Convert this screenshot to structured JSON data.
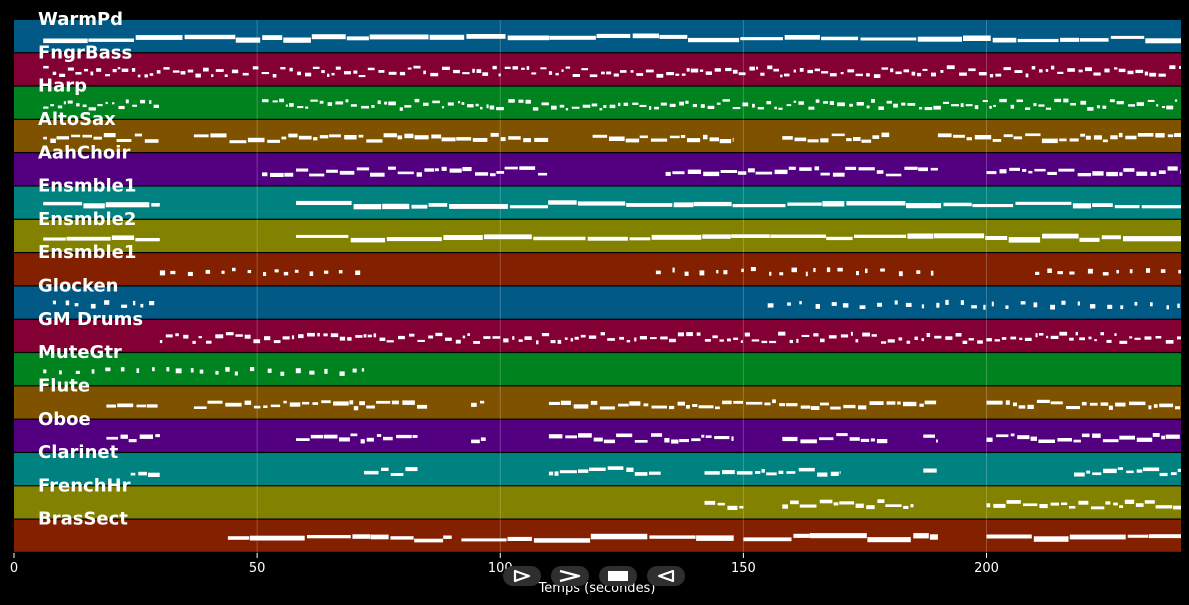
{
  "chart_data": {
    "type": "piano-roll",
    "title": "",
    "xlabel": "Temps (secondes)",
    "ylabel": "",
    "xlim": [
      0,
      240
    ],
    "xticks": [
      0,
      50,
      100,
      150,
      200
    ],
    "grid": true,
    "background": "#000000",
    "note_color": "#ffffff",
    "tracks": [
      {
        "name": "WarmPd",
        "color": "#005a85",
        "style": "sustain",
        "segments": [
          [
            6,
            240
          ]
        ]
      },
      {
        "name": "FngrBass",
        "color": "#820033",
        "style": "dense",
        "segments": [
          [
            6,
            240
          ]
        ]
      },
      {
        "name": "Harp",
        "color": "#00821e",
        "style": "dense",
        "segments": [
          [
            6,
            30
          ],
          [
            51,
            240
          ]
        ]
      },
      {
        "name": "AltoSax",
        "color": "#7f5200",
        "style": "phrase",
        "segments": [
          [
            6,
            30
          ],
          [
            37,
            110
          ],
          [
            119,
            148
          ],
          [
            158,
            180
          ],
          [
            190,
            240
          ]
        ]
      },
      {
        "name": "AahChoir",
        "color": "#52007f",
        "style": "phrase",
        "segments": [
          [
            51,
            110
          ],
          [
            134,
            190
          ],
          [
            200,
            240
          ]
        ]
      },
      {
        "name": "Ensmble1",
        "color": "#008280",
        "style": "sustain",
        "segments": [
          [
            6,
            30
          ],
          [
            58,
            240
          ]
        ]
      },
      {
        "name": "Ensmble2",
        "color": "#828200",
        "style": "sustain",
        "segments": [
          [
            6,
            30
          ],
          [
            58,
            240
          ]
        ]
      },
      {
        "name": "Ensmble1",
        "color": "#822000",
        "style": "sparse",
        "segments": [
          [
            30,
            72
          ],
          [
            132,
            190
          ],
          [
            210,
            240
          ]
        ]
      },
      {
        "name": "Glocken",
        "color": "#005a85",
        "style": "sparse",
        "segments": [
          [
            8,
            30
          ],
          [
            155,
            240
          ]
        ]
      },
      {
        "name": "GM Drums",
        "color": "#820033",
        "style": "dense",
        "segments": [
          [
            30,
            240
          ]
        ]
      },
      {
        "name": "MuteGtr",
        "color": "#00821e",
        "style": "sparse",
        "segments": [
          [
            6,
            72
          ]
        ]
      },
      {
        "name": "Flute",
        "color": "#7f5200",
        "style": "phrase",
        "segments": [
          [
            19,
            30
          ],
          [
            37,
            85
          ],
          [
            94,
            97
          ],
          [
            110,
            190
          ],
          [
            200,
            240
          ]
        ]
      },
      {
        "name": "Oboe",
        "color": "#52007f",
        "style": "phrase",
        "segments": [
          [
            19,
            30
          ],
          [
            58,
            83
          ],
          [
            94,
            97
          ],
          [
            110,
            148
          ],
          [
            158,
            180
          ],
          [
            187,
            190
          ],
          [
            200,
            240
          ]
        ]
      },
      {
        "name": "Clarinet",
        "color": "#008280",
        "style": "phrase",
        "segments": [
          [
            24,
            30
          ],
          [
            72,
            83
          ],
          [
            110,
            133
          ],
          [
            142,
            170
          ],
          [
            187,
            190
          ],
          [
            218,
            240
          ]
        ]
      },
      {
        "name": "FrenchHr",
        "color": "#828200",
        "style": "phrase",
        "segments": [
          [
            142,
            150
          ],
          [
            158,
            185
          ],
          [
            200,
            240
          ]
        ]
      },
      {
        "name": "BrasSect",
        "color": "#822000",
        "style": "sustain",
        "segments": [
          [
            44,
            90
          ],
          [
            92,
            148
          ],
          [
            150,
            190
          ],
          [
            200,
            240
          ]
        ]
      }
    ]
  },
  "controls": [
    {
      "name": "play-icon"
    },
    {
      "name": "fast-forward-icon"
    },
    {
      "name": "stop-icon"
    },
    {
      "name": "rewind-icon"
    }
  ]
}
